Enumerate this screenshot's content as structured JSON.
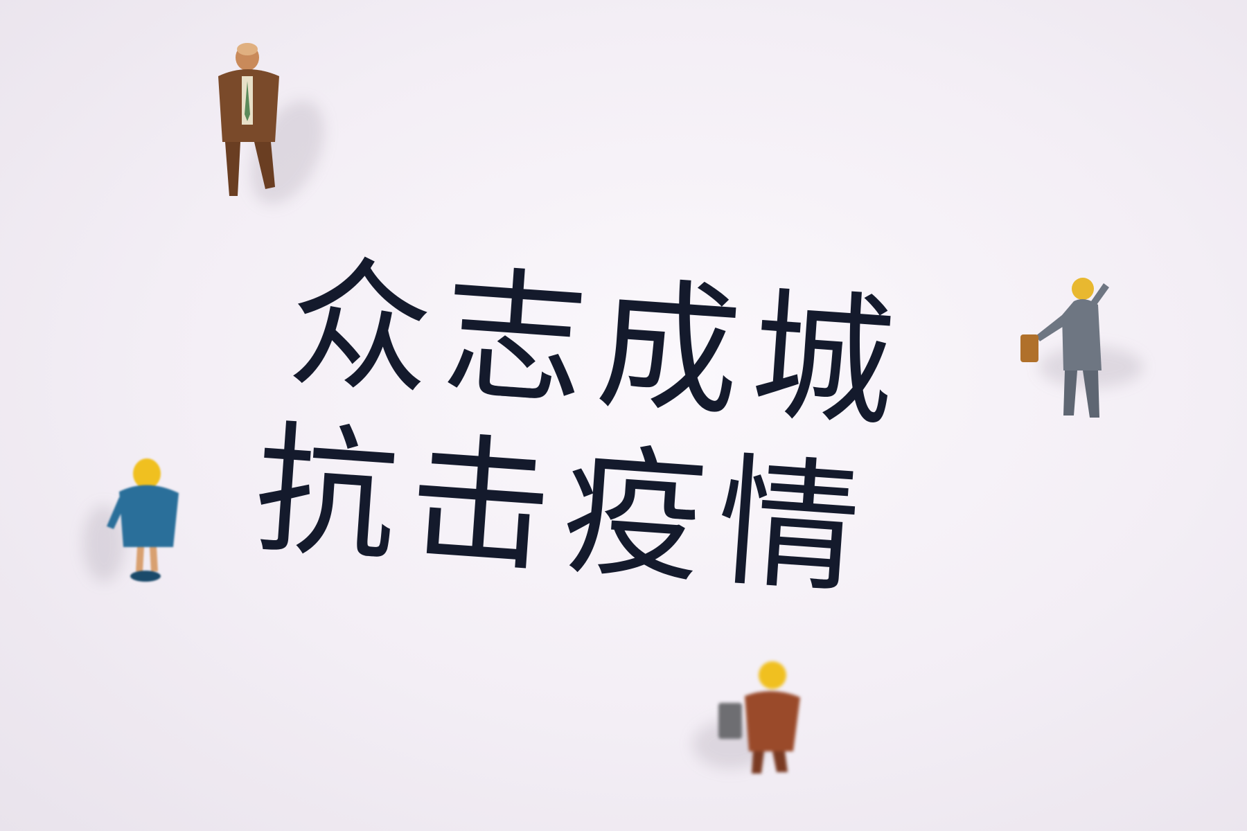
{
  "image": {
    "headline": {
      "line1": "众志成城",
      "line2": "抗击疫情",
      "text_color": "#141a2c"
    },
    "background_color": "#f6f2f7",
    "figures": [
      {
        "icon": "businessman-figurine-brown-suit",
        "color": "#7a4a2a"
      },
      {
        "icon": "worker-figurine-grey-suit",
        "color": "#6e7682"
      },
      {
        "icon": "person-figurine-blue-jacket",
        "color": "#2a6f9a"
      },
      {
        "icon": "person-figurine-orange-coat",
        "color": "#9a4a2a"
      }
    ]
  }
}
